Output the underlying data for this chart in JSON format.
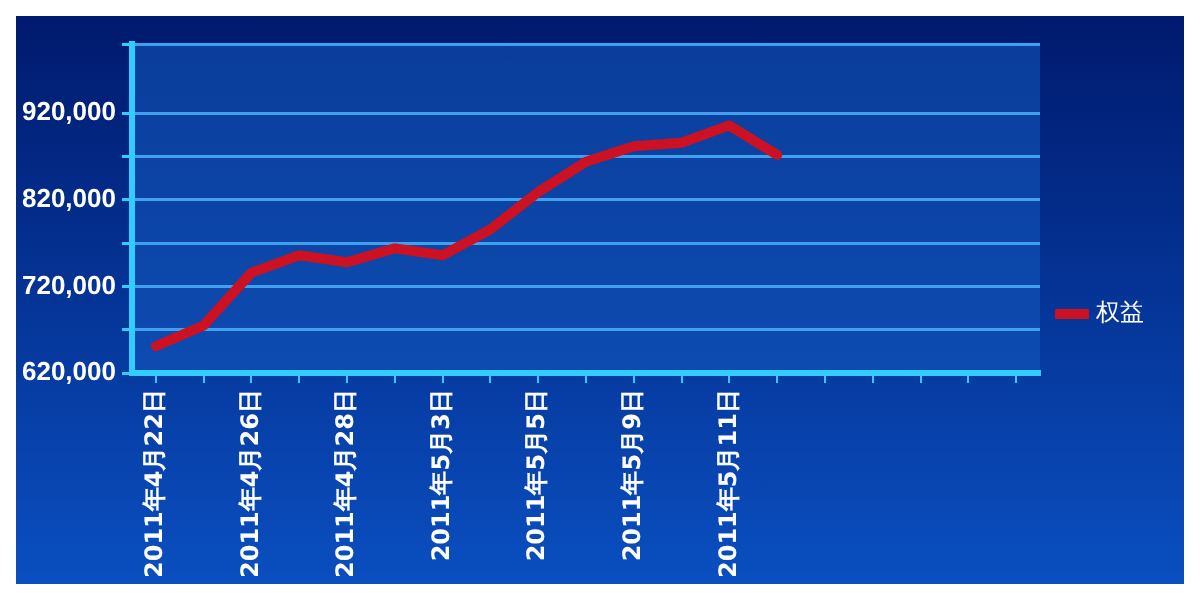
{
  "chart_data": {
    "type": "line",
    "categories": [
      "2011年4月22日",
      null,
      "2011年4月26日",
      null,
      "2011年4月28日",
      null,
      "2011年5月3日",
      null,
      "2011年5月5日",
      null,
      "2011年5月9日",
      null,
      "2011年5月11日",
      null,
      null,
      null,
      null,
      null,
      null
    ],
    "series": [
      {
        "name": "权益",
        "color": "#cc1122",
        "values": [
          651000,
          675000,
          736000,
          756000,
          748000,
          764000,
          756000,
          786000,
          829000,
          864000,
          882000,
          886000,
          906000,
          872000,
          null,
          null,
          null,
          null,
          null
        ]
      }
    ],
    "ylim": [
      620000,
      1000000
    ],
    "yticks": [
      {
        "value": 620000,
        "label": "620,000"
      },
      {
        "value": 670000,
        "label": null
      },
      {
        "value": 720000,
        "label": "720,000"
      },
      {
        "value": 770000,
        "label": null
      },
      {
        "value": 820000,
        "label": "820,000"
      },
      {
        "value": 870000,
        "label": null
      },
      {
        "value": 920000,
        "label": "920,000"
      },
      {
        "value": 1000000,
        "label": null
      }
    ],
    "grid": "y",
    "legend": "right",
    "marker": "none",
    "line_style": "solid"
  }
}
